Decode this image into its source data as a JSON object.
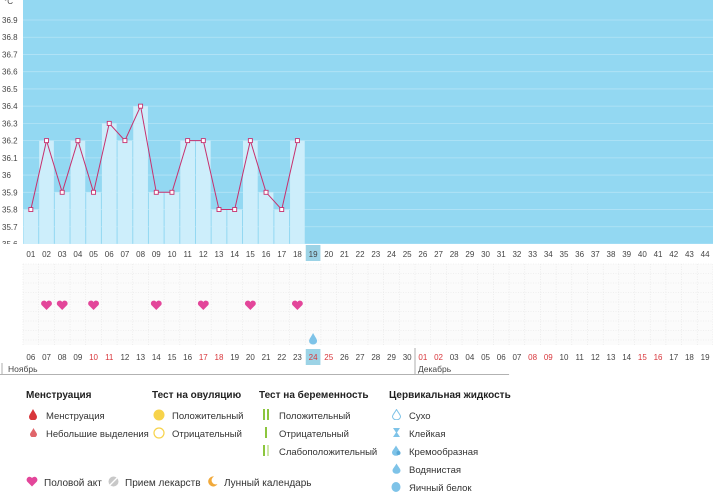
{
  "unit_label": "°C",
  "colors": {
    "background_band": "#93d8f2",
    "bar_fill": "#cdeefb",
    "line": "#c7316e",
    "heart": "#e3469a",
    "weekend": "#d8363b",
    "highlight": "#9cd3e6",
    "drop": "#7ec3e8"
  },
  "chart_data": {
    "type": "bar",
    "title": "",
    "ylabel": "°C",
    "ylim": [
      35.6,
      36.9
    ],
    "yticks": [
      "35.6",
      "35.7",
      "35.8",
      "35.9",
      "36",
      "36.1",
      "36.2",
      "36.3",
      "36.4",
      "36.5",
      "36.6",
      "36.7",
      "36.8",
      "36.9"
    ],
    "cycle_days": [
      "01",
      "02",
      "03",
      "04",
      "05",
      "06",
      "07",
      "08",
      "09",
      "10",
      "11",
      "12",
      "13",
      "14",
      "15",
      "16",
      "17",
      "18",
      "19",
      "20",
      "21",
      "22",
      "23",
      "24",
      "25",
      "26",
      "27",
      "28",
      "29",
      "30",
      "31",
      "32",
      "33",
      "34",
      "35",
      "36",
      "37",
      "38",
      "39",
      "40",
      "41",
      "42",
      "43",
      "44"
    ],
    "temperatures": [
      35.8,
      36.2,
      35.9,
      36.2,
      35.9,
      36.3,
      36.2,
      36.4,
      35.9,
      35.9,
      36.2,
      36.2,
      35.8,
      35.8,
      36.2,
      35.9,
      35.8,
      36.2
    ],
    "current_day_index": 18,
    "calendar_dates": [
      "06",
      "07",
      "08",
      "09",
      "10",
      "11",
      "12",
      "13",
      "14",
      "15",
      "16",
      "17",
      "18",
      "19",
      "20",
      "21",
      "22",
      "23",
      "24",
      "25",
      "26",
      "27",
      "28",
      "29",
      "30",
      "01",
      "02",
      "03",
      "04",
      "05",
      "06",
      "07",
      "08",
      "09",
      "10",
      "11",
      "12",
      "13",
      "14",
      "15",
      "16",
      "17",
      "18",
      "19"
    ],
    "weekend_date_indexes": [
      4,
      5,
      11,
      12,
      18,
      19,
      25,
      26,
      32,
      33,
      39,
      40
    ],
    "intercourse_day_indexes": [
      1,
      2,
      4,
      8,
      11,
      14,
      17
    ],
    "drop_day_index": 18,
    "months": [
      {
        "label": "Ноябрь"
      },
      {
        "label": "Декабрь"
      }
    ]
  },
  "legend": {
    "menstruation": {
      "title": "Менструация",
      "items": [
        "Менструация",
        "Небольшие выделения"
      ]
    },
    "ovulation_test": {
      "title": "Тест на овуляцию",
      "items": [
        "Положительный",
        "Отрицательный"
      ]
    },
    "pregnancy_test": {
      "title": "Тест на беременность",
      "items": [
        "Положительный",
        "Отрицательный",
        "Слабоположительный"
      ]
    },
    "cervical_fluid": {
      "title": "Цервикальная жидкость",
      "items": [
        "Сухо",
        "Клейкая",
        "Кремообразная",
        "Водянистая",
        "Яичный белок"
      ]
    },
    "bottom": {
      "intercourse": "Половой акт",
      "medicine": "Прием лекарств",
      "lunar": "Лунный календарь"
    }
  }
}
